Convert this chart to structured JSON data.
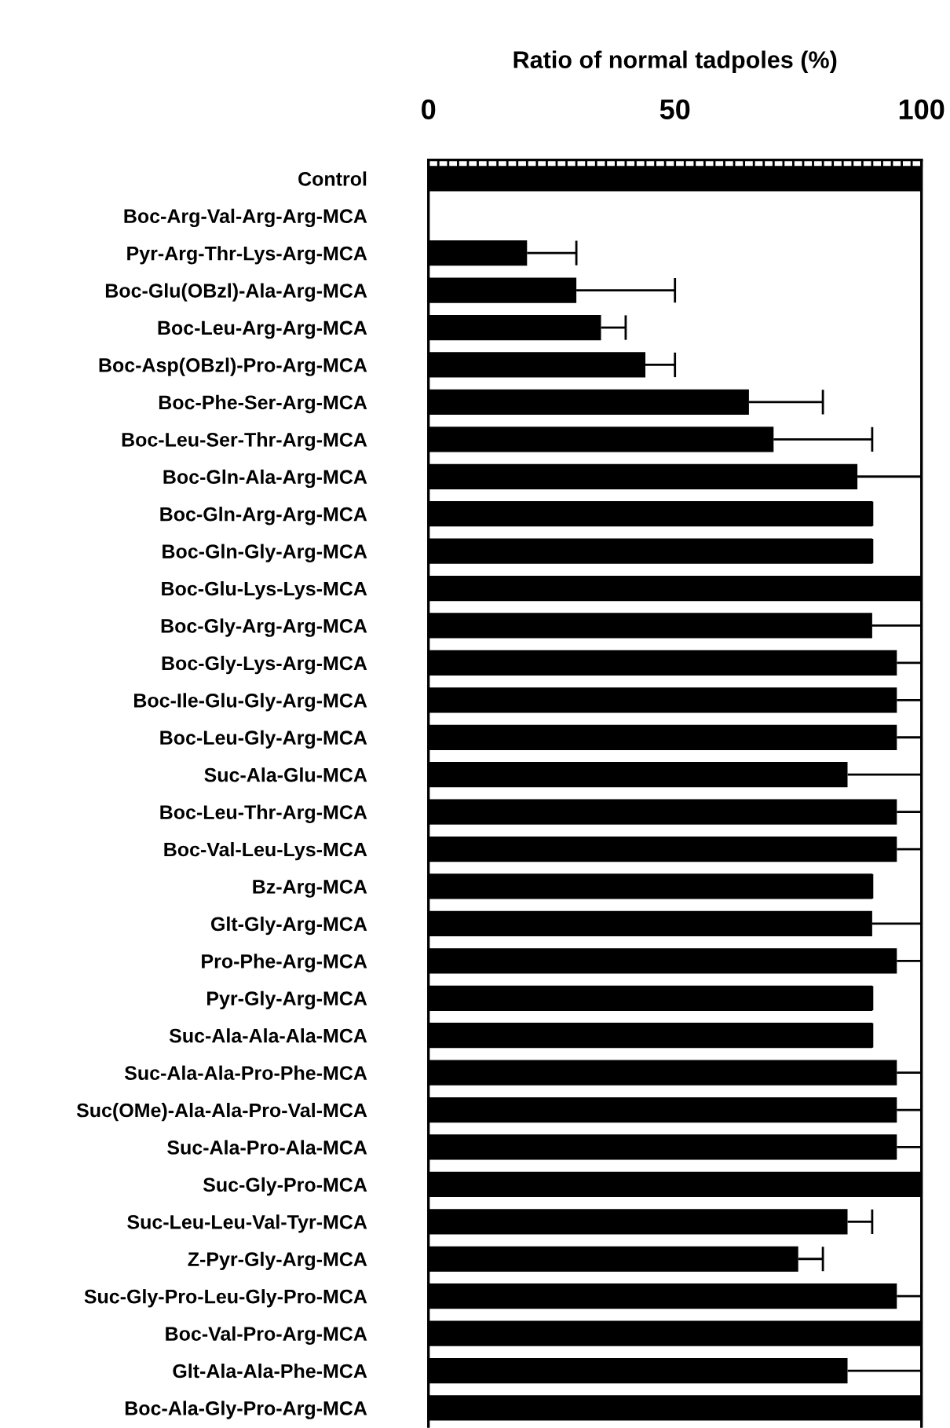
{
  "chart_data": {
    "type": "bar",
    "orientation": "horizontal",
    "xlabel": "Ratio of normal tadpoles (%)",
    "categories": [
      "Control",
      "Boc-Arg-Val-Arg-Arg-MCA",
      "Pyr-Arg-Thr-Lys-Arg-MCA",
      "Boc-Glu(OBzl)-Ala-Arg-MCA",
      "Boc-Leu-Arg-Arg-MCA",
      "Boc-Asp(OBzl)-Pro-Arg-MCA",
      "Boc-Phe-Ser-Arg-MCA",
      "Boc-Leu-Ser-Thr-Arg-MCA",
      "Boc-Gln-Ala-Arg-MCA",
      "Boc-Gln-Arg-Arg-MCA",
      "Boc-Gln-Gly-Arg-MCA",
      "Boc-Glu-Lys-Lys-MCA",
      "Boc-Gly-Arg-Arg-MCA",
      "Boc-Gly-Lys-Arg-MCA",
      "Boc-Ile-Glu-Gly-Arg-MCA",
      "Boc-Leu-Gly-Arg-MCA",
      "Suc-Ala-Glu-MCA",
      "Boc-Leu-Thr-Arg-MCA",
      "Boc-Val-Leu-Lys-MCA",
      "Bz-Arg-MCA",
      "Glt-Gly-Arg-MCA",
      "Pro-Phe-Arg-MCA",
      "Pyr-Gly-Arg-MCA",
      "Suc-Ala-Ala-Ala-MCA",
      "Suc-Ala-Ala-Pro-Phe-MCA",
      "Suc(OMe)-Ala-Ala-Pro-Val-MCA",
      "Suc-Ala-Pro-Ala-MCA",
      "Suc-Gly-Pro-MCA",
      "Suc-Leu-Leu-Val-Tyr-MCA",
      "Z-Pyr-Gly-Arg-MCA",
      "Suc-Gly-Pro-Leu-Gly-Pro-MCA",
      "Boc-Val-Pro-Arg-MCA",
      "Glt-Ala-Ala-Phe-MCA",
      "Boc-Ala-Gly-Pro-Arg-MCA"
    ],
    "values": [
      100,
      0,
      20,
      30,
      35,
      44,
      65,
      70,
      87,
      90,
      90,
      100,
      90,
      95,
      95,
      95,
      85,
      95,
      95,
      90,
      90,
      95,
      90,
      90,
      95,
      95,
      95,
      100,
      85,
      75,
      95,
      100,
      85,
      100
    ],
    "errors": [
      null,
      null,
      [
        20,
        30
      ],
      [
        30,
        50
      ],
      [
        35,
        40
      ],
      [
        44,
        50
      ],
      [
        65,
        80
      ],
      [
        70,
        90
      ],
      [
        87,
        100
      ],
      [
        90,
        90
      ],
      [
        90,
        90
      ],
      null,
      [
        90,
        100
      ],
      [
        95,
        100
      ],
      [
        95,
        100
      ],
      [
        95,
        100
      ],
      [
        85,
        100
      ],
      [
        95,
        100
      ],
      [
        95,
        100
      ],
      [
        90,
        90
      ],
      [
        90,
        100
      ],
      [
        95,
        100
      ],
      [
        90,
        90
      ],
      [
        90,
        90
      ],
      [
        95,
        100
      ],
      [
        95,
        100
      ],
      [
        95,
        100
      ],
      null,
      [
        85,
        90
      ],
      [
        75,
        80
      ],
      [
        95,
        100
      ],
      null,
      [
        85,
        100
      ],
      null
    ],
    "color": "#000000",
    "xlim": [
      0,
      100
    ],
    "xticks": [
      0,
      {
        "value": 2,
        "label": null
      },
      {
        "value": 4,
        "label": null
      },
      {
        "value": 6,
        "label": null
      },
      {
        "value": 8,
        "label": null
      },
      {
        "value": 10,
        "label": null
      },
      {
        "value": 12,
        "label": null
      },
      {
        "value": 14,
        "label": null
      },
      {
        "value": 16,
        "label": null
      },
      {
        "value": 18,
        "label": null
      },
      {
        "value": 20,
        "label": null
      },
      {
        "value": 22,
        "label": null
      },
      {
        "value": 24,
        "label": null
      },
      {
        "value": 26,
        "label": null
      },
      {
        "value": 28,
        "label": null
      },
      {
        "value": 30,
        "label": null
      },
      {
        "value": 32,
        "label": null
      },
      {
        "value": 34,
        "label": null
      },
      {
        "value": 36,
        "label": null
      },
      {
        "value": 38,
        "label": null
      },
      {
        "value": 40,
        "label": null
      },
      {
        "value": 42,
        "label": null
      },
      {
        "value": 44,
        "label": null
      },
      {
        "value": 46,
        "label": null
      },
      {
        "value": 48,
        "label": null
      },
      50,
      {
        "value": 52,
        "label": null
      },
      {
        "value": 54,
        "label": null
      },
      {
        "value": 56,
        "label": null
      },
      {
        "value": 58,
        "label": null
      },
      {
        "value": 60,
        "label": null
      },
      {
        "value": 62,
        "label": null
      },
      {
        "value": 64,
        "label": null
      },
      {
        "value": 66,
        "label": null
      },
      {
        "value": 68,
        "label": null
      },
      {
        "value": 70,
        "label": null
      },
      {
        "value": 72,
        "label": null
      },
      {
        "value": 74,
        "label": null
      },
      {
        "value": 76,
        "label": null
      },
      {
        "value": 78,
        "label": null
      },
      {
        "value": 80,
        "label": null
      },
      {
        "value": 82,
        "label": null
      },
      {
        "value": 84,
        "label": null
      },
      {
        "value": 86,
        "label": null
      },
      {
        "value": 88,
        "label": null
      },
      {
        "value": 90,
        "label": null
      },
      {
        "value": 92,
        "label": null
      },
      {
        "value": 94,
        "label": null
      },
      {
        "value": 96,
        "label": null
      },
      {
        "value": 98,
        "label": null
      },
      100
    ],
    "grid": false
  }
}
